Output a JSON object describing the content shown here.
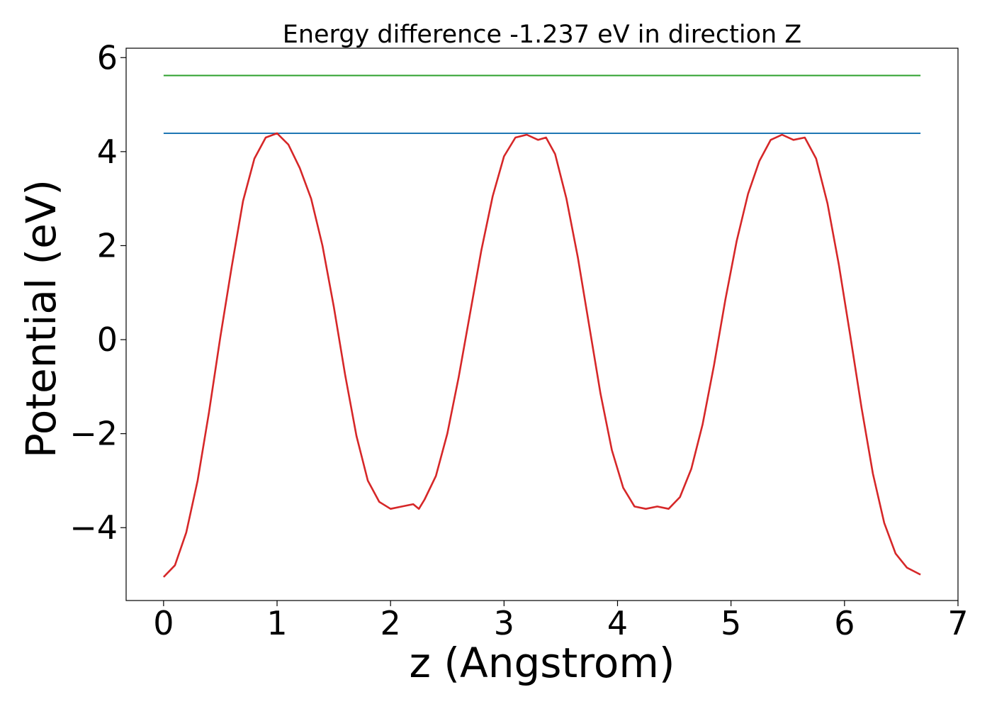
{
  "chart_data": {
    "type": "line",
    "title": "Energy difference -1.237 eV in direction Z",
    "xlabel": "z (Angstrom)",
    "ylabel": "Potential (eV)",
    "xlim": [
      -0.33,
      7.0
    ],
    "ylim": [
      -5.55,
      6.2
    ],
    "xticks": [
      0,
      1,
      2,
      3,
      4,
      5,
      6,
      7
    ],
    "xtick_labels": [
      "0",
      "1",
      "2",
      "3",
      "4",
      "5",
      "6",
      "7"
    ],
    "yticks": [
      -4,
      -2,
      0,
      2,
      4,
      6
    ],
    "ytick_labels": [
      "−4",
      "−2",
      "0",
      "2",
      "4",
      "6"
    ],
    "grid": false,
    "series": [
      {
        "color": "#2ca02c",
        "x": [
          0,
          6.67
        ],
        "y": [
          5.62,
          5.62
        ]
      },
      {
        "color": "#1f77b4",
        "x": [
          0,
          6.67
        ],
        "y": [
          4.39,
          4.39
        ]
      },
      {
        "color": "#d62728",
        "x": [
          0.0,
          0.1,
          0.2,
          0.3,
          0.4,
          0.5,
          0.6,
          0.7,
          0.8,
          0.9,
          1.0,
          1.1,
          1.2,
          1.3,
          1.4,
          1.5,
          1.6,
          1.7,
          1.8,
          1.9,
          2.0,
          2.1,
          2.2,
          2.25,
          2.3,
          2.4,
          2.5,
          2.6,
          2.7,
          2.8,
          2.9,
          3.0,
          3.1,
          3.2,
          3.3,
          3.37,
          3.45,
          3.55,
          3.65,
          3.75,
          3.85,
          3.95,
          4.05,
          4.15,
          4.25,
          4.35,
          4.45,
          4.55,
          4.65,
          4.75,
          4.85,
          4.95,
          5.05,
          5.15,
          5.25,
          5.35,
          5.45,
          5.55,
          5.65,
          5.75,
          5.85,
          5.95,
          6.05,
          6.15,
          6.25,
          6.35,
          6.45,
          6.55,
          6.67
        ],
        "y": [
          -5.05,
          -4.8,
          -4.1,
          -3.0,
          -1.55,
          0.05,
          1.55,
          2.95,
          3.85,
          4.3,
          4.39,
          4.15,
          3.65,
          3.0,
          2.0,
          0.7,
          -0.75,
          -2.05,
          -3.0,
          -3.45,
          -3.6,
          -3.55,
          -3.5,
          -3.6,
          -3.4,
          -2.9,
          -2.0,
          -0.8,
          0.55,
          1.9,
          3.05,
          3.9,
          4.3,
          4.36,
          4.25,
          4.3,
          3.95,
          3.0,
          1.75,
          0.3,
          -1.15,
          -2.35,
          -3.15,
          -3.55,
          -3.6,
          -3.55,
          -3.6,
          -3.35,
          -2.75,
          -1.8,
          -0.55,
          0.85,
          2.1,
          3.1,
          3.8,
          4.25,
          4.36,
          4.25,
          4.3,
          3.85,
          2.9,
          1.6,
          0.1,
          -1.45,
          -2.85,
          -3.9,
          -4.55,
          -4.85,
          -5.0
        ]
      }
    ]
  }
}
